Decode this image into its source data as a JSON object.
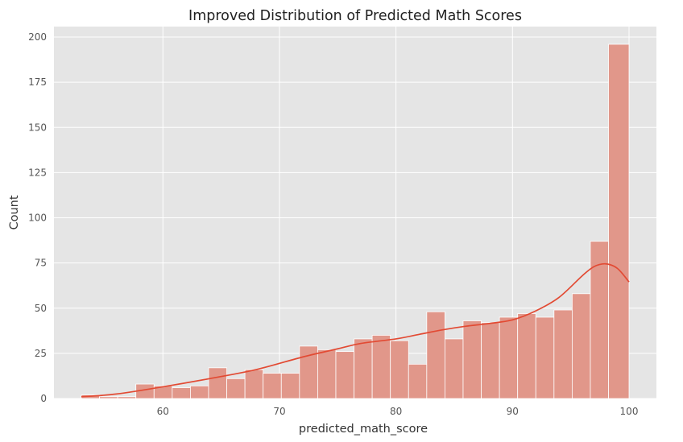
{
  "chart_data": {
    "type": "bar",
    "title": "Improved Distribution of Predicted Math Scores",
    "xlabel": "predicted_math_score",
    "ylabel": "Count",
    "xlim": [
      50.65,
      102.35
    ],
    "ylim": [
      0,
      205.8
    ],
    "xticks": [
      60,
      70,
      80,
      90,
      100
    ],
    "yticks": [
      0,
      25,
      50,
      75,
      100,
      125,
      150,
      175,
      200
    ],
    "grid": true,
    "bin_edges": [
      53.0,
      54.56,
      56.12,
      57.68,
      59.24,
      60.8,
      62.36,
      63.92,
      65.48,
      67.04,
      68.6,
      70.16,
      71.72,
      73.28,
      74.84,
      76.4,
      77.96,
      79.52,
      81.08,
      82.64,
      84.2,
      85.76,
      87.32,
      88.88,
      90.44,
      92.0,
      93.56,
      95.12,
      96.68,
      98.24,
      100.0
    ],
    "values": [
      2,
      1,
      1,
      8,
      7,
      6,
      7,
      17,
      11,
      16,
      14,
      14,
      29,
      27,
      26,
      33,
      35,
      32,
      19,
      48,
      33,
      43,
      42,
      45,
      47,
      45,
      49,
      58,
      87,
      196
    ],
    "kde": {
      "x": [
        53,
        56,
        60,
        64,
        68,
        72,
        75,
        77,
        80,
        82,
        84,
        86,
        88,
        90,
        92,
        94,
        96,
        97,
        98,
        99,
        100
      ],
      "y": [
        1,
        2.5,
        6.5,
        11,
        16,
        23,
        27.5,
        30.5,
        33,
        35.5,
        38,
        40,
        41.5,
        43.5,
        48.5,
        56,
        68,
        73,
        74.5,
        72,
        64.5
      ]
    }
  },
  "colors": {
    "background": "#E5E5E5",
    "grid": "#FFFFFF",
    "bar_fill": "#E1978A",
    "bar_edge": "#FFFFFF",
    "kde_line": "#E24A33"
  }
}
